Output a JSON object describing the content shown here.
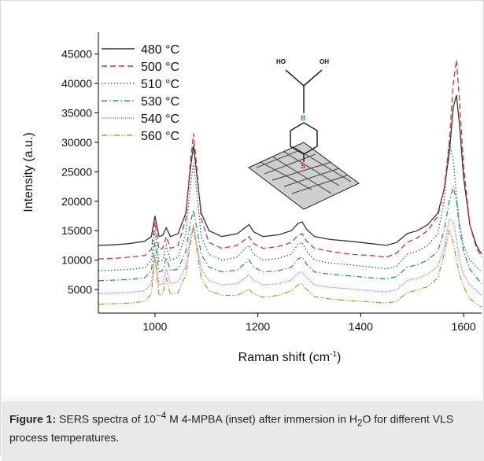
{
  "chart_data": {
    "type": "line",
    "xlabel": {
      "text": "Raman shift (cm",
      "sup": "-1",
      "end": ")"
    },
    "ylabel": "Intensity (a.u.)",
    "xlim": [
      890,
      1635
    ],
    "ylim": [
      1000,
      48700
    ],
    "xticks": [
      1000,
      1200,
      1400,
      1600
    ],
    "yticks": [
      5000,
      10000,
      15000,
      20000,
      25000,
      30000,
      35000,
      40000,
      45000
    ],
    "legend": "upper left",
    "inset_labels": [
      "HO",
      "OH",
      "B",
      "S"
    ],
    "x": [
      890,
      920,
      950,
      980,
      993,
      1000,
      1008,
      1015,
      1022,
      1030,
      1045,
      1060,
      1068,
      1075,
      1082,
      1090,
      1105,
      1130,
      1160,
      1175,
      1183,
      1192,
      1210,
      1240,
      1265,
      1278,
      1286,
      1295,
      1310,
      1340,
      1380,
      1420,
      1450,
      1470,
      1490,
      1510,
      1530,
      1550,
      1562,
      1572,
      1580,
      1586,
      1592,
      1600,
      1612,
      1625,
      1635
    ],
    "series": [
      {
        "name": "480 °C",
        "color": "#333333",
        "style": "solid",
        "values": [
          12500,
          12600,
          12800,
          13200,
          14000,
          17500,
          14000,
          14200,
          15500,
          14000,
          14500,
          18000,
          25000,
          29500,
          24000,
          18000,
          15000,
          14000,
          14500,
          15500,
          16000,
          14800,
          14000,
          14300,
          15000,
          16200,
          16500,
          15200,
          14000,
          13500,
          13200,
          12800,
          12500,
          13000,
          14500,
          15000,
          16000,
          18000,
          22000,
          28000,
          36000,
          38000,
          33000,
          24000,
          16000,
          12500,
          11000
        ]
      },
      {
        "name": "500 °C",
        "color": "#e2312b",
        "style": "dashed",
        "values": [
          10200,
          10300,
          10500,
          10800,
          11800,
          16500,
          11800,
          12000,
          14000,
          12000,
          12500,
          17000,
          26000,
          31500,
          25000,
          17000,
          13000,
          12000,
          12500,
          13500,
          14000,
          12800,
          12000,
          12300,
          13000,
          14200,
          14500,
          13200,
          12000,
          11500,
          11000,
          10800,
          10500,
          11200,
          13000,
          13800,
          15000,
          17500,
          22000,
          30000,
          40000,
          44000,
          37000,
          26000,
          16000,
          12000,
          10500
        ]
      },
      {
        "name": "510 °C",
        "color": "#1f5fbf",
        "style": "dotted",
        "values": [
          8200,
          8300,
          8400,
          8700,
          10000,
          15000,
          9800,
          10000,
          12500,
          10000,
          10500,
          14500,
          22000,
          26500,
          21000,
          14000,
          11000,
          10000,
          10500,
          12000,
          12500,
          11000,
          10000,
          10300,
          11000,
          12700,
          13000,
          11500,
          10000,
          9500,
          9200,
          8800,
          8500,
          9000,
          11000,
          11500,
          12500,
          14500,
          20000,
          30000,
          27000,
          21000,
          16000,
          12500,
          10000,
          8800,
          8000
        ]
      },
      {
        "name": "530 °C",
        "color": "#22a05a",
        "style": "dashdot",
        "values": [
          6500,
          6600,
          6700,
          7000,
          8200,
          13000,
          8000,
          8200,
          10500,
          8200,
          8500,
          11500,
          16000,
          18500,
          15000,
          11000,
          8800,
          8000,
          8300,
          9500,
          10000,
          8800,
          8000,
          8200,
          8800,
          10200,
          10500,
          9300,
          8000,
          7600,
          7300,
          7000,
          6800,
          7200,
          8800,
          9200,
          10000,
          11500,
          15000,
          20000,
          22500,
          20000,
          15500,
          11500,
          8500,
          7000,
          6000
        ]
      },
      {
        "name": "540 °C",
        "color": "#b44fe0",
        "style": "finedot",
        "values": [
          4300,
          4400,
          4500,
          4800,
          6000,
          11000,
          5800,
          6000,
          8500,
          6000,
          6300,
          9000,
          13500,
          16000,
          12500,
          8500,
          6500,
          5800,
          6000,
          7000,
          7500,
          6500,
          5800,
          6000,
          6600,
          7800,
          8000,
          7000,
          5800,
          5400,
          5100,
          4800,
          4600,
          5000,
          6500,
          6900,
          7600,
          9000,
          12000,
          17000,
          16500,
          13500,
          10000,
          7500,
          5800,
          4800,
          4000
        ]
      },
      {
        "name": "560 °C",
        "color": "#c8952a",
        "style": "dashdotdot",
        "values": [
          2500,
          2600,
          2700,
          3000,
          4200,
          10500,
          4000,
          4200,
          7000,
          4200,
          4500,
          7500,
          12500,
          15500,
          11500,
          7000,
          4800,
          4000,
          4000,
          4700,
          5000,
          4300,
          3700,
          4000,
          4800,
          5800,
          6000,
          5000,
          3800,
          3400,
          3100,
          2900,
          2700,
          3000,
          4500,
          4900,
          5500,
          7000,
          11000,
          15000,
          13000,
          10000,
          7500,
          5500,
          3500,
          2500,
          2000
        ]
      }
    ]
  },
  "caption": {
    "label": "Figure 1:",
    "part1": " SERS spectra of 10",
    "sup": "−4",
    "part2": " M 4-MPBA (inset) after immersion in H",
    "sub": "2",
    "part3": "O for different VLS process temperatures."
  }
}
